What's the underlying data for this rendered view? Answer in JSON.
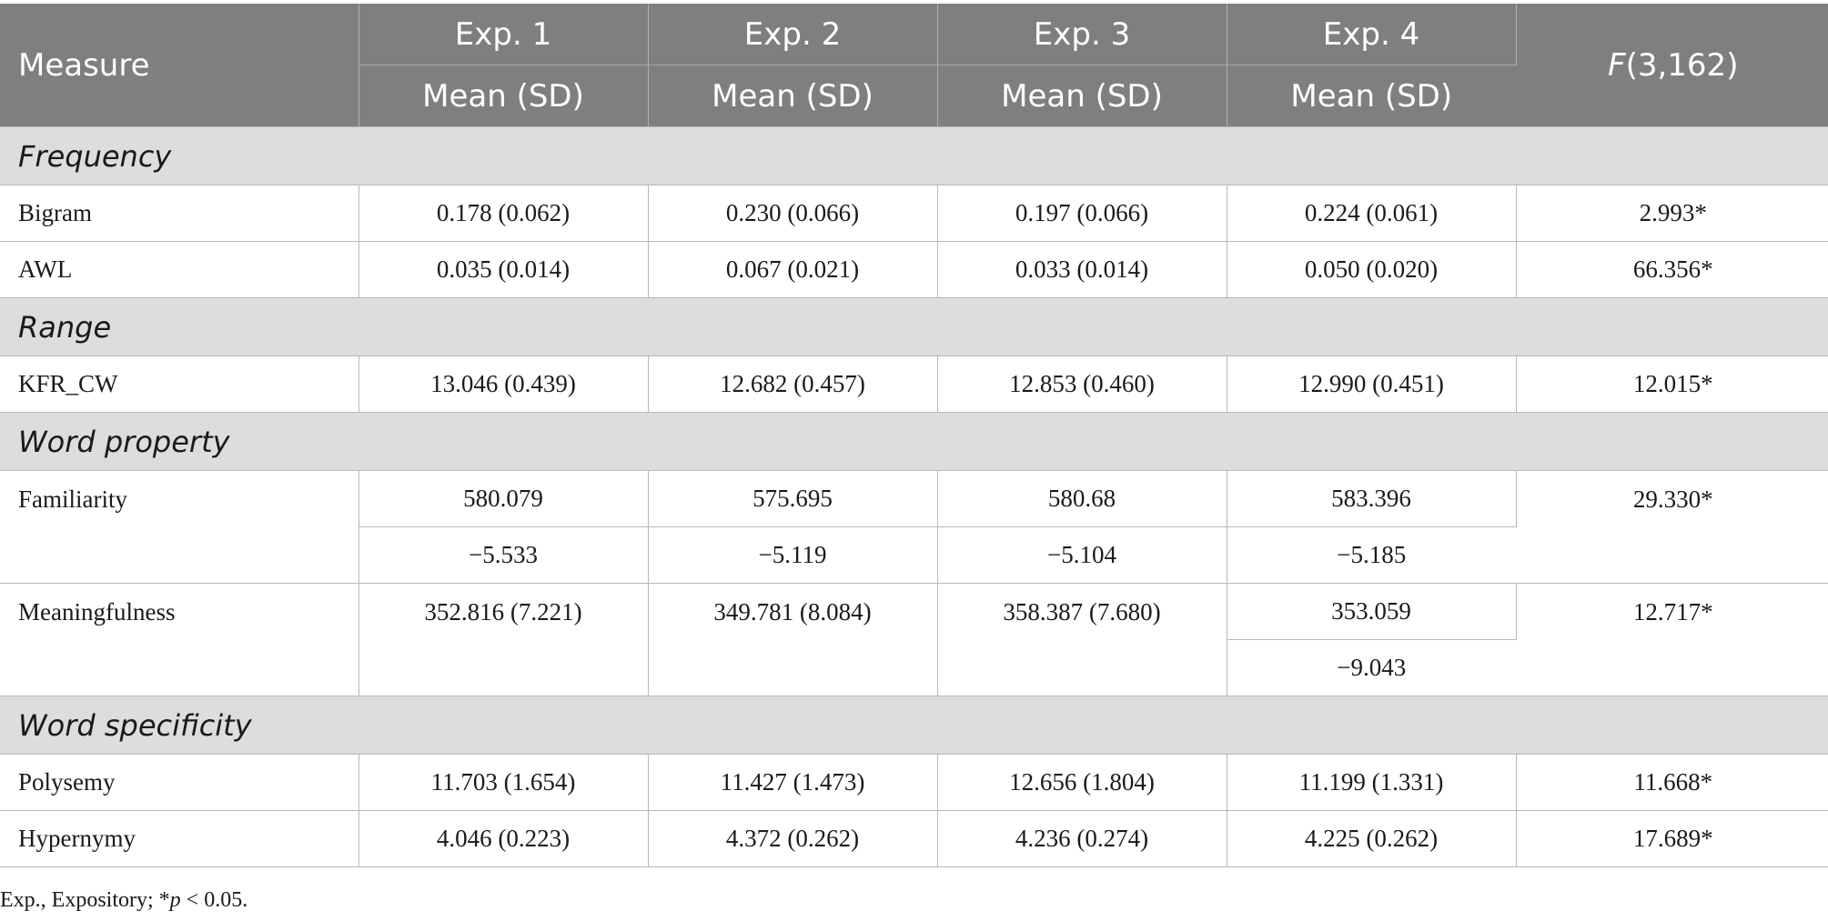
{
  "header": {
    "measure": "Measure",
    "exps": [
      "Exp. 1",
      "Exp. 2",
      "Exp. 3",
      "Exp. 4"
    ],
    "subheader": "Mean (SD)",
    "f_letter": "F",
    "f_args": "(3,162)"
  },
  "sections": [
    {
      "title": "Frequency",
      "rows": [
        {
          "label": "Bigram",
          "values": [
            "0.178 (0.062)",
            "0.230 (0.066)",
            "0.197 (0.066)",
            "0.224 (0.061)"
          ],
          "f": "2.993*"
        },
        {
          "label": "AWL",
          "values": [
            "0.035 (0.014)",
            "0.067 (0.021)",
            "0.033 (0.014)",
            "0.050 (0.020)"
          ],
          "f": "66.356*"
        }
      ]
    },
    {
      "title": "Range",
      "rows": [
        {
          "label": "KFR_CW",
          "values": [
            "13.046 (0.439)",
            "12.682 (0.457)",
            "12.853 (0.460)",
            "12.990 (0.451)"
          ],
          "f": "12.015*"
        }
      ]
    },
    {
      "title": "Word property",
      "familiarity": {
        "label": "Familiarity",
        "values": [
          "580.079",
          "575.695",
          "580.68",
          "583.396"
        ],
        "values2": [
          "−5.533",
          "−5.119",
          "−5.104",
          "−5.185"
        ],
        "f": "29.330*"
      },
      "meaningfulness": {
        "label": "Meaningfulness",
        "values": [
          "352.816 (7.221)",
          "349.781 (8.084)",
          "358.387 (7.680)",
          "353.059"
        ],
        "value4_second": "−9.043",
        "f": "12.717*"
      }
    },
    {
      "title": "Word specificity",
      "rows": [
        {
          "label": "Polysemy",
          "values": [
            "11.703 (1.654)",
            "11.427 (1.473)",
            "12.656 (1.804)",
            "11.199 (1.331)"
          ],
          "f": "11.668*"
        },
        {
          "label": "Hypernymy",
          "values": [
            "4.046 (0.223)",
            "4.372 (0.262)",
            "4.236 (0.274)",
            "4.225 (0.262)"
          ],
          "f": "17.689*"
        }
      ]
    }
  ],
  "footnote": {
    "prefix": "Exp., Expository; *",
    "p": "p",
    "suffix": " < 0.05."
  }
}
